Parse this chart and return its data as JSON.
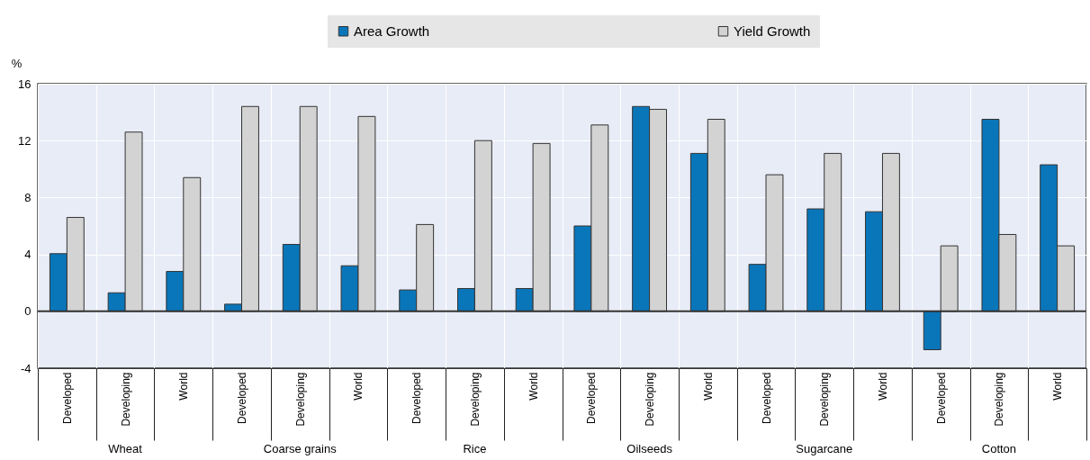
{
  "chart_data": {
    "type": "bar",
    "ylabel": "%",
    "categories": [
      "Developed",
      "Developing",
      "World",
      "Developed",
      "Developing",
      "World",
      "Developed",
      "Developing",
      "World",
      "Developed",
      "Developing",
      "World",
      "Developed",
      "Developing",
      "World",
      "Developed",
      "Developing",
      "World"
    ],
    "series": [
      {
        "name": "Area Growth",
        "color": "#0a76ba",
        "values": [
          4.05,
          1.3,
          2.8,
          0.5,
          4.7,
          3.2,
          1.5,
          1.6,
          1.6,
          6.0,
          14.4,
          11.1,
          3.3,
          7.2,
          7.0,
          -2.7,
          13.5,
          10.3
        ]
      },
      {
        "name": "Yield Growth",
        "color": "#d3d3d3",
        "values": [
          6.6,
          12.6,
          9.4,
          14.4,
          14.4,
          13.7,
          6.1,
          12.0,
          11.8,
          13.1,
          14.2,
          13.5,
          9.6,
          11.1,
          11.1,
          4.6,
          5.4,
          4.6
        ]
      }
    ],
    "annotations": [
      "Wheat",
      "Coarse grains",
      "Rice",
      "Oilseeds",
      "Sugarcane",
      "Cotton"
    ],
    "ref_lines": [
      {
        "axis": "y",
        "value": 0,
        "label": null
      }
    ],
    "ylim": [
      -4,
      16
    ],
    "yticks": [
      -4,
      0,
      4,
      8,
      12,
      16
    ],
    "grid": true,
    "legend": "top"
  }
}
